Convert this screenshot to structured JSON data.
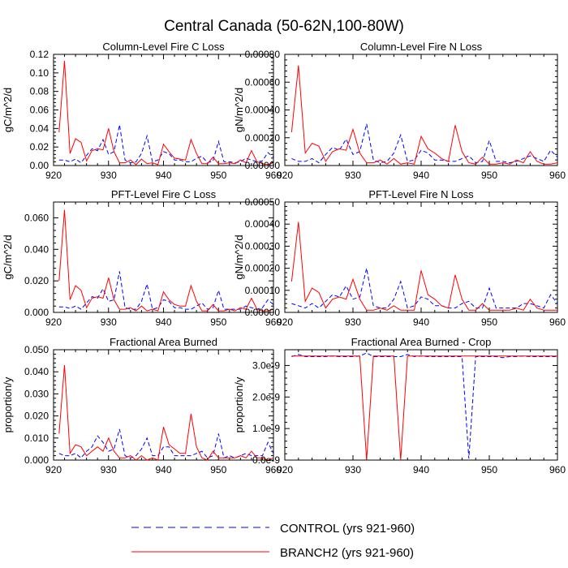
{
  "title": "Central Canada (50-62N,100-80W)",
  "colors": {
    "control": "#0000ff",
    "branch2": "#ff0000",
    "axis": "#000000"
  },
  "legend": {
    "control_label": "CONTROL (yrs 921-960)",
    "branch2_label": "BRANCH2 (yrs 921-960)"
  },
  "chart_data": [
    {
      "type": "line",
      "title": "Column-Level Fire C Loss",
      "ylabel": "gC/m^2/d",
      "xlim": [
        920,
        960
      ],
      "xticks": [
        "920",
        "930",
        "940",
        "950",
        "960"
      ],
      "ylim": [
        0,
        0.12
      ],
      "yticks": [
        "0.00",
        "0.02",
        "0.04",
        "0.06",
        "0.08",
        "0.10",
        "0.12"
      ],
      "x": [
        921,
        922,
        923,
        924,
        925,
        926,
        927,
        928,
        929,
        930,
        931,
        932,
        933,
        934,
        935,
        936,
        937,
        938,
        939,
        940,
        941,
        942,
        943,
        944,
        945,
        946,
        947,
        948,
        949,
        950,
        951,
        952,
        953,
        954,
        955,
        956,
        957,
        958,
        959,
        960
      ],
      "series": [
        {
          "name": "CONTROL",
          "values": [
            0.006,
            0.006,
            0.004,
            0.007,
            0.003,
            0.011,
            0.018,
            0.016,
            0.028,
            0.012,
            0.015,
            0.044,
            0.006,
            0.003,
            0.004,
            0.013,
            0.032,
            0.004,
            0.006,
            0.015,
            0.013,
            0.006,
            0.006,
            0.004,
            0.004,
            0.008,
            0.01,
            0.003,
            0.005,
            0.026,
            0.004,
            0.004,
            0.003,
            0.004,
            0.008,
            0.006,
            0.004,
            0.005,
            0.014,
            0.009
          ]
        },
        {
          "name": "BRANCH2",
          "values": [
            0.036,
            0.113,
            0.013,
            0.029,
            0.025,
            0.005,
            0.016,
            0.018,
            0.017,
            0.04,
            0.015,
            0.003,
            0.003,
            0.006,
            0.001,
            0.007,
            0.002,
            0.003,
            0.001,
            0.023,
            0.015,
            0.008,
            0.007,
            0.006,
            0.028,
            0.013,
            0.002,
            0.002,
            0.009,
            0.002,
            0.002,
            0.003,
            0.002,
            0.006,
            0.003,
            0.016,
            0.004,
            0.002,
            0.001,
            0.003
          ]
        }
      ]
    },
    {
      "type": "line",
      "title": "Column-Level Fire N Loss",
      "ylabel": "gN/m^2/d",
      "xlim": [
        920,
        960
      ],
      "xticks": [
        "920",
        "930",
        "940",
        "950",
        "960"
      ],
      "ylim": [
        0,
        0.0008
      ],
      "yticks": [
        "0.00000",
        "0.00020",
        "0.00040",
        "0.00060",
        "0.00080"
      ],
      "x": [
        921,
        922,
        923,
        924,
        925,
        926,
        927,
        928,
        929,
        930,
        931,
        932,
        933,
        934,
        935,
        936,
        937,
        938,
        939,
        940,
        941,
        942,
        943,
        944,
        945,
        946,
        947,
        948,
        949,
        950,
        951,
        952,
        953,
        954,
        955,
        956,
        957,
        958,
        959,
        960
      ],
      "series": [
        {
          "name": "CONTROL",
          "values": [
            5e-05,
            3e-05,
            3e-05,
            5e-05,
            2e-05,
            8e-05,
            0.00013,
            0.00011,
            0.00019,
            8e-05,
            0.0001,
            0.0003,
            4e-05,
            2e-05,
            3e-05,
            9e-05,
            0.00022,
            3e-05,
            4e-05,
            0.00011,
            9e-05,
            4e-05,
            4e-05,
            3e-05,
            3e-05,
            5e-05,
            7e-05,
            2e-05,
            3e-05,
            0.00018,
            3e-05,
            3e-05,
            2e-05,
            3e-05,
            5e-05,
            7e-05,
            5e-05,
            3e-05,
            0.00011,
            6e-05
          ]
        },
        {
          "name": "BRANCH2",
          "values": [
            0.00024,
            0.00072,
            9e-05,
            0.00016,
            0.00014,
            3e-05,
            0.0001,
            0.00012,
            0.00011,
            0.00026,
            9e-05,
            2e-05,
            2e-05,
            4e-05,
            1e-05,
            5e-05,
            1e-05,
            2e-05,
            1e-05,
            0.00021,
            0.00012,
            9e-05,
            5e-05,
            3e-05,
            0.00029,
            0.0001,
            2e-05,
            1e-05,
            6e-05,
            1e-05,
            1e-05,
            2e-05,
            1e-05,
            4e-05,
            2e-05,
            0.0001,
            3e-05,
            1e-05,
            1e-05,
            2e-05
          ]
        }
      ]
    },
    {
      "type": "line",
      "title": "PFT-Level Fire C Loss",
      "ylabel": "gC/m^2/d",
      "xlim": [
        920,
        960
      ],
      "xticks": [
        "920",
        "930",
        "940",
        "950",
        "960"
      ],
      "ylim": [
        0,
        0.07
      ],
      "yticks": [
        "0.000",
        "0.020",
        "0.040",
        "0.060"
      ],
      "x": [
        921,
        922,
        923,
        924,
        925,
        926,
        927,
        928,
        929,
        930,
        931,
        932,
        933,
        934,
        935,
        936,
        937,
        938,
        939,
        940,
        941,
        942,
        943,
        944,
        945,
        946,
        947,
        948,
        949,
        950,
        951,
        952,
        953,
        954,
        955,
        956,
        957,
        958,
        959,
        960
      ],
      "series": [
        {
          "name": "CONTROL",
          "values": [
            0.0035,
            0.0035,
            0.0025,
            0.004,
            0.002,
            0.006,
            0.01,
            0.009,
            0.015,
            0.007,
            0.008,
            0.026,
            0.003,
            0.002,
            0.002,
            0.007,
            0.018,
            0.002,
            0.003,
            0.008,
            0.007,
            0.003,
            0.003,
            0.002,
            0.002,
            0.004,
            0.006,
            0.002,
            0.003,
            0.014,
            0.002,
            0.002,
            0.002,
            0.002,
            0.004,
            0.003,
            0.002,
            0.003,
            0.008,
            0.005
          ]
        },
        {
          "name": "BRANCH2",
          "values": [
            0.02,
            0.065,
            0.008,
            0.017,
            0.014,
            0.003,
            0.009,
            0.01,
            0.009,
            0.022,
            0.008,
            0.002,
            0.002,
            0.003,
            0.001,
            0.004,
            0.001,
            0.002,
            0.001,
            0.013,
            0.008,
            0.005,
            0.004,
            0.004,
            0.017,
            0.007,
            0.001,
            0.001,
            0.005,
            0.001,
            0.001,
            0.002,
            0.001,
            0.003,
            0.002,
            0.009,
            0.002,
            0.001,
            0.001,
            0.002
          ]
        }
      ]
    },
    {
      "type": "line",
      "title": "PFT-Level Fire N Loss",
      "ylabel": "gN/m^2/d",
      "xlim": [
        920,
        960
      ],
      "xticks": [
        "920",
        "930",
        "940",
        "950",
        "960"
      ],
      "ylim": [
        0,
        0.0005
      ],
      "yticks": [
        "0.00000",
        "0.00010",
        "0.00020",
        "0.00030",
        "0.00040",
        "0.00050"
      ],
      "x": [
        921,
        922,
        923,
        924,
        925,
        926,
        927,
        928,
        929,
        930,
        931,
        932,
        933,
        934,
        935,
        936,
        937,
        938,
        939,
        940,
        941,
        942,
        943,
        944,
        945,
        946,
        947,
        948,
        949,
        950,
        951,
        952,
        953,
        954,
        955,
        956,
        957,
        958,
        959,
        960
      ],
      "series": [
        {
          "name": "CONTROL",
          "values": [
            4e-05,
            3e-05,
            2e-05,
            4e-05,
            2e-05,
            5e-05,
            8e-05,
            7e-05,
            0.00012,
            6e-05,
            7e-05,
            0.0002,
            3e-05,
            2e-05,
            2e-05,
            6e-05,
            0.00014,
            2e-05,
            3e-05,
            7e-05,
            6e-05,
            3e-05,
            3e-05,
            2e-05,
            2e-05,
            4e-05,
            5e-05,
            2e-05,
            2e-05,
            0.00011,
            2e-05,
            2e-05,
            2e-05,
            2e-05,
            4e-05,
            4e-05,
            3e-05,
            2e-05,
            8e-05,
            4e-05
          ]
        },
        {
          "name": "BRANCH2",
          "values": [
            0.00014,
            0.00041,
            5e-05,
            0.00011,
            9e-05,
            2e-05,
            6e-05,
            7e-05,
            6e-05,
            0.00015,
            6e-05,
            1e-05,
            1e-05,
            2e-05,
            1e-05,
            3e-05,
            1e-05,
            1e-05,
            1e-05,
            0.00019,
            8e-05,
            6e-05,
            3e-05,
            2e-05,
            0.00017,
            6e-05,
            1e-05,
            1e-05,
            4e-05,
            1e-05,
            1e-05,
            1e-05,
            1e-05,
            2e-05,
            1e-05,
            6e-05,
            2e-05,
            1e-05,
            1e-05,
            1e-05
          ]
        }
      ]
    },
    {
      "type": "line",
      "title": "Fractional Area Burned",
      "ylabel": "proportion/y",
      "xlim": [
        920,
        960
      ],
      "xticks": [
        "920",
        "930",
        "940",
        "950",
        "960"
      ],
      "ylim": [
        0,
        0.05
      ],
      "yticks": [
        "0.000",
        "0.010",
        "0.020",
        "0.030",
        "0.040",
        "0.050"
      ],
      "x": [
        921,
        922,
        923,
        924,
        925,
        926,
        927,
        928,
        929,
        930,
        931,
        932,
        933,
        934,
        935,
        936,
        937,
        938,
        939,
        940,
        941,
        942,
        943,
        944,
        945,
        946,
        947,
        948,
        949,
        950,
        951,
        952,
        953,
        954,
        955,
        956,
        957,
        958,
        959,
        960
      ],
      "series": [
        {
          "name": "CONTROL",
          "values": [
            0.003,
            0.002,
            0.002,
            0.003,
            0.001,
            0.004,
            0.006,
            0.011,
            0.008,
            0.004,
            0.005,
            0.014,
            0.002,
            0.001,
            0.002,
            0.005,
            0.01,
            0.002,
            0.002,
            0.006,
            0.006,
            0.002,
            0.002,
            0.002,
            0.002,
            0.003,
            0.004,
            0.001,
            0.002,
            0.012,
            0.001,
            0.002,
            0.001,
            0.002,
            0.003,
            0.002,
            0.002,
            0.002,
            0.008,
            0.003
          ]
        },
        {
          "name": "BRANCH2",
          "values": [
            0.012,
            0.043,
            0.003,
            0.007,
            0.006,
            0.002,
            0.004,
            0.006,
            0.004,
            0.01,
            0.004,
            0.001,
            0.001,
            0.002,
            0.0,
            0.002,
            0.0,
            0.001,
            0.0,
            0.015,
            0.007,
            0.005,
            0.003,
            0.003,
            0.021,
            0.006,
            0.001,
            0.0,
            0.004,
            0.001,
            0.001,
            0.001,
            0.001,
            0.002,
            0.001,
            0.004,
            0.001,
            0.001,
            0.0,
            0.001
          ]
        }
      ]
    },
    {
      "type": "line",
      "title": "Fractional Area Burned - Crop",
      "ylabel": "proportion/y",
      "xlim": [
        920,
        960
      ],
      "xticks": [
        "920",
        "930",
        "940",
        "950",
        "960"
      ],
      "ylim": [
        0,
        3.5e-09
      ],
      "yticks": [
        "0.0e-9",
        "1.0e-9",
        "2.0e-9",
        "3.0e-9"
      ],
      "x": [
        921,
        922,
        923,
        924,
        925,
        926,
        927,
        928,
        929,
        930,
        931,
        932,
        933,
        934,
        935,
        936,
        937,
        938,
        939,
        940,
        941,
        942,
        943,
        944,
        945,
        946,
        947,
        948,
        949,
        950,
        951,
        952,
        953,
        954,
        955,
        956,
        957,
        958,
        959,
        960
      ],
      "series": [
        {
          "name": "CONTROL",
          "values": [
            3.28e-09,
            3.35e-09,
            3.28e-09,
            3.28e-09,
            3.28e-09,
            3.28e-09,
            3.3e-09,
            3.28e-09,
            3.28e-09,
            3.28e-09,
            3.3e-09,
            3.4e-09,
            3.28e-09,
            3.28e-09,
            3.28e-09,
            3.28e-09,
            3.28e-09,
            3.35e-09,
            3.28e-09,
            3.3e-09,
            3.28e-09,
            3.28e-09,
            3.28e-09,
            3.28e-09,
            3.28e-09,
            3.28e-09,
            5e-11,
            3.28e-09,
            3.28e-09,
            3.28e-09,
            3.28e-09,
            3.25e-09,
            3.28e-09,
            3.28e-09,
            3.3e-09,
            3.28e-09,
            3.28e-09,
            3.28e-09,
            3.28e-09,
            3.28e-09
          ]
        },
        {
          "name": "BRANCH2",
          "values": [
            3.3e-09,
            3.3e-09,
            3.3e-09,
            3.3e-09,
            3.3e-09,
            3.3e-09,
            3.3e-09,
            3.3e-09,
            3.3e-09,
            3.3e-09,
            3.3e-09,
            0.0,
            3.3e-09,
            3.3e-09,
            3.3e-09,
            3.3e-09,
            0.0,
            3.3e-09,
            3.3e-09,
            3.3e-09,
            3.3e-09,
            3.3e-09,
            3.3e-09,
            3.3e-09,
            3.3e-09,
            3.3e-09,
            3.3e-09,
            3.3e-09,
            3.3e-09,
            3.3e-09,
            3.3e-09,
            3.3e-09,
            3.3e-09,
            3.3e-09,
            3.3e-09,
            3.3e-09,
            3.3e-09,
            3.3e-09,
            3.3e-09,
            3.3e-09
          ]
        }
      ]
    }
  ]
}
